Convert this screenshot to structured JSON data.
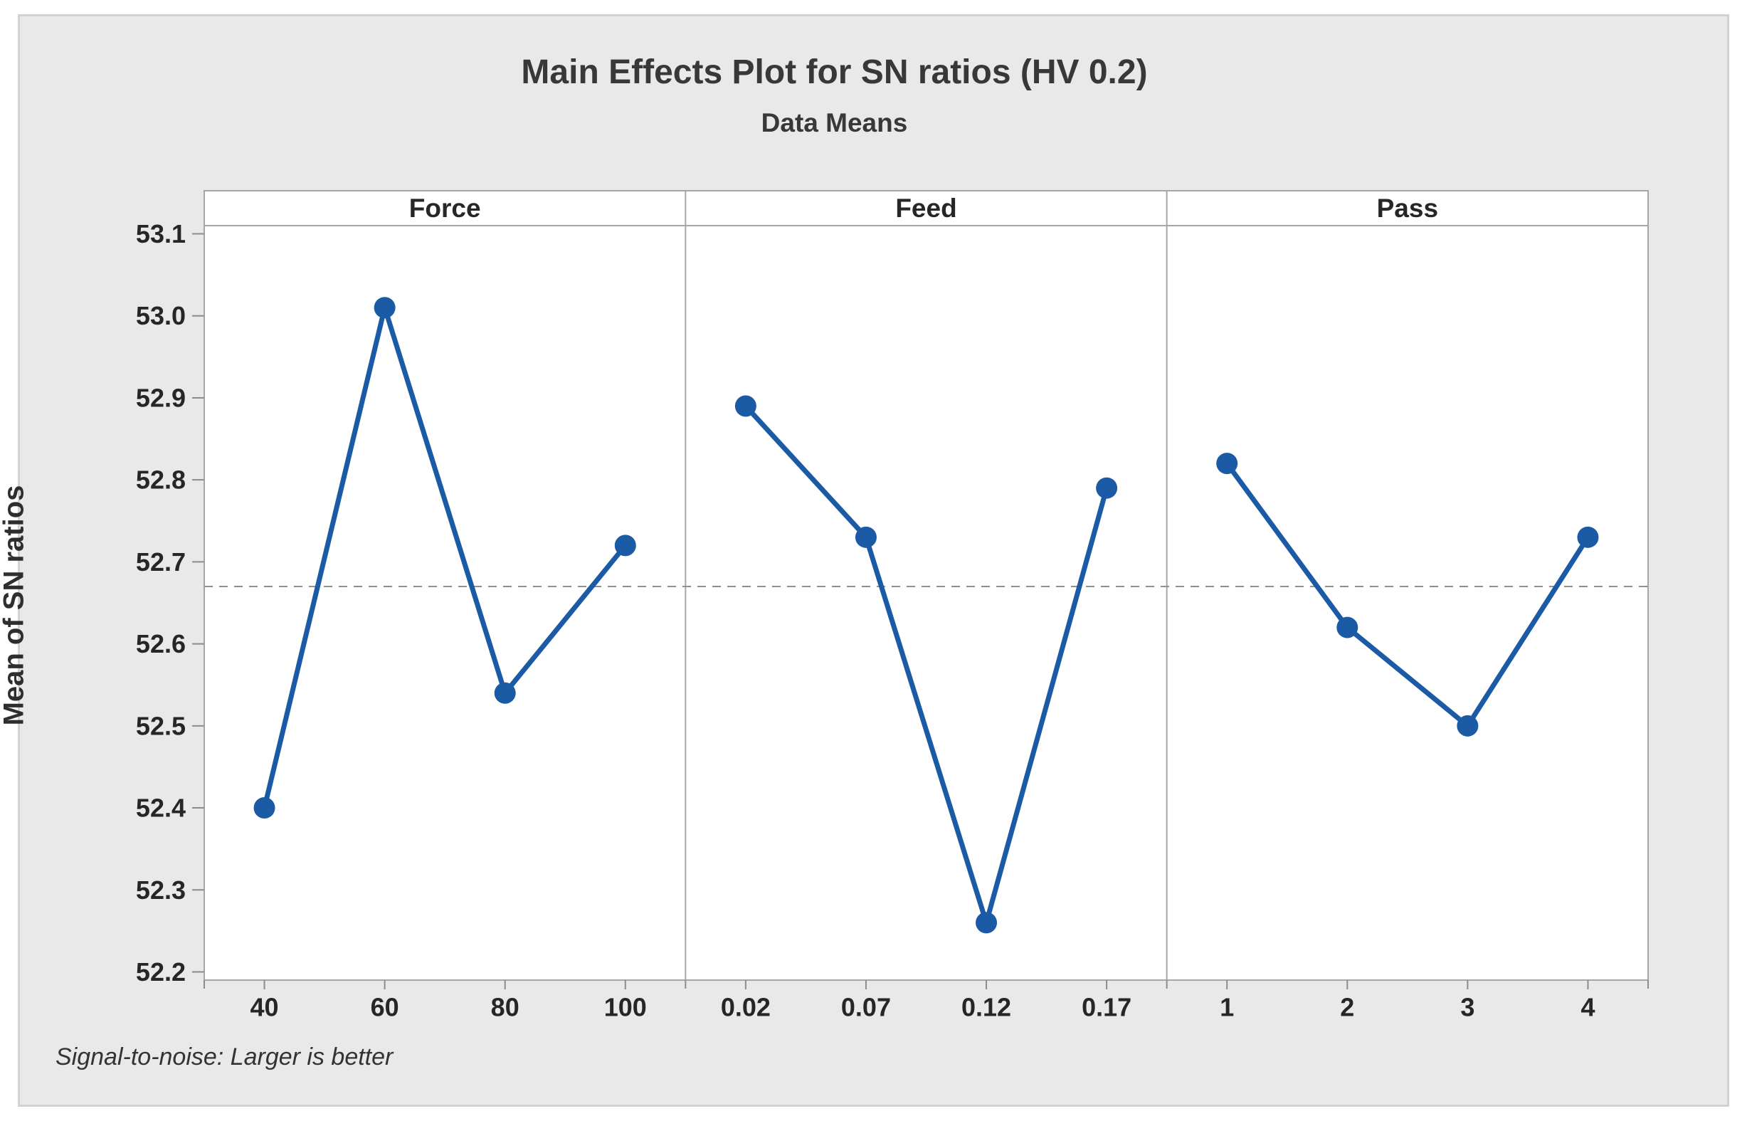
{
  "figure": {
    "title": "Main Effects Plot for SN ratios (HV 0.2)",
    "subtitle": "Data Means",
    "ylabel": "Mean of SN ratios",
    "footnote": "Signal-to-noise: Larger is better"
  },
  "colors": {
    "figure_bg": "#e9e9e9",
    "figure_border": "#d2d2d2",
    "plot_bg": "#ffffff",
    "frame": "#a6a6a6",
    "series": "#1b5aa5",
    "mean_line": "#8f8f8f",
    "tick": "#8c8c8c",
    "text": "#262626"
  },
  "chart_data": {
    "type": "line",
    "title": "Main Effects Plot for SN ratios (HV 0.2)",
    "subtitle": "Data Means",
    "ylabel": "Mean of SN ratios",
    "footnote": "Signal-to-noise: Larger is better",
    "grid": false,
    "legend": "none",
    "overall_mean": 52.67,
    "ylim": [
      52.19,
      53.11
    ],
    "yticks": [
      "53.1",
      "53.0",
      "52.9",
      "52.8",
      "52.7",
      "52.6",
      "52.5",
      "52.4",
      "52.3",
      "52.2"
    ],
    "panels": [
      {
        "label": "Force",
        "categories": [
          "40",
          "60",
          "80",
          "100"
        ],
        "values": [
          52.4,
          53.01,
          52.54,
          52.72
        ]
      },
      {
        "label": "Feed",
        "categories": [
          "0.02",
          "0.07",
          "0.12",
          "0.17"
        ],
        "values": [
          52.89,
          52.73,
          52.26,
          52.79
        ]
      },
      {
        "label": "Pass",
        "categories": [
          "1",
          "2",
          "3",
          "4"
        ],
        "values": [
          52.82,
          52.62,
          52.5,
          52.73
        ]
      }
    ]
  }
}
